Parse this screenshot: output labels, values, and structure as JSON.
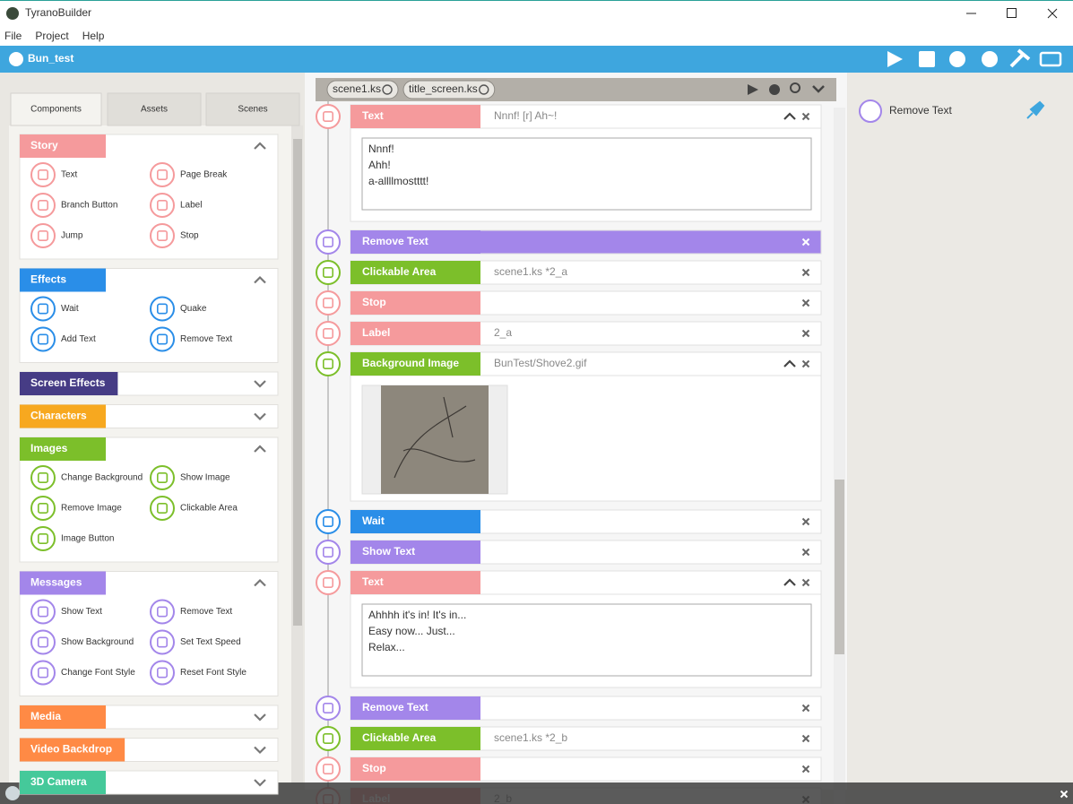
{
  "app": {
    "title": "TyranoBuilder",
    "menu": [
      "File",
      "Project",
      "Help"
    ],
    "project": "Bun_test"
  },
  "components": {
    "tabs": [
      "Components",
      "Assets",
      "Scenes"
    ],
    "groups": [
      {
        "name": "Story",
        "color": "#f59a9c",
        "items": [
          "Text",
          "Page Break",
          "Branch Button",
          "Label",
          "Jump",
          "Stop"
        ]
      },
      {
        "name": "Effects",
        "color": "#2a8ee8",
        "items": [
          "Wait",
          "Quake",
          "Add Text",
          "Remove Text"
        ]
      },
      {
        "name": "Screen Effects",
        "color": "#463c85"
      },
      {
        "name": "Characters",
        "color": "#f7a81f"
      },
      {
        "name": "Images",
        "color": "#7cbf2a",
        "items": [
          "Change Background",
          "Show Image",
          "Remove Image",
          "Clickable Area",
          "Image Button"
        ]
      },
      {
        "name": "Messages",
        "color": "#a386ea",
        "items": [
          "Show Text",
          "Remove Text",
          "Show Background",
          "Set Text Speed",
          "Change Font Style",
          "Reset Font Style"
        ]
      },
      {
        "name": "Media",
        "color": "#ff8a45"
      },
      {
        "name": "Video Backdrop",
        "color": "#ff8a45"
      },
      {
        "name": "3D Camera",
        "color": "#45c99a"
      }
    ]
  },
  "scene": {
    "tabs": [
      "scene1.ks",
      "title_screen.ks"
    ],
    "blocks": [
      {
        "name": "Text",
        "color": "#f59a9c",
        "detail": "Nnnf! [r] Ah~!",
        "lines": [
          "Nnnf!",
          "Ahh!",
          "a-allllmostttt!"
        ]
      },
      {
        "name": "Remove Text",
        "color": "#a386ea",
        "selected": true
      },
      {
        "name": "Clickable Area",
        "color": "#7cbf2a",
        "detail": "scene1.ks *2_a"
      },
      {
        "name": "Stop",
        "color": "#f59a9c"
      },
      {
        "name": "Label",
        "color": "#f59a9c",
        "detail": "2_a"
      },
      {
        "name": "Background Image",
        "color": "#7cbf2a",
        "detail": "BunTest/Shove2.gif",
        "image": true
      },
      {
        "name": "Wait",
        "color": "#2a8ee8"
      },
      {
        "name": "Show Text",
        "color": "#a386ea"
      },
      {
        "name": "Text",
        "color": "#f59a9c",
        "lines": [
          "Ahhhh it's in! It's in...",
          "Easy now... Just...",
          "Relax..."
        ]
      },
      {
        "name": "Remove Text",
        "color": "#a386ea"
      },
      {
        "name": "Clickable Area",
        "color": "#7cbf2a",
        "detail": "scene1.ks *2_b"
      },
      {
        "name": "Stop",
        "color": "#f59a9c"
      },
      {
        "name": "Label",
        "color": "#f59a9c",
        "detail": "2_b"
      }
    ]
  },
  "inspector": {
    "title": "Remove Text",
    "color": "#a386ea"
  }
}
